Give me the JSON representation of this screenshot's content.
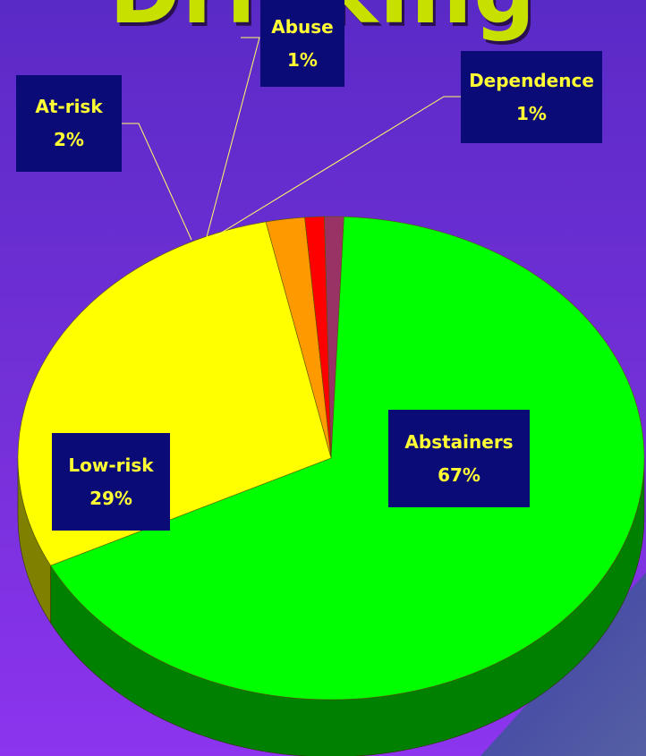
{
  "slide": {
    "title_fragment": "Drinking"
  },
  "chart_data": {
    "type": "pie",
    "style": "3d",
    "slices": [
      {
        "label": "Abstainers",
        "value": 67,
        "value_label": "67%",
        "color": "#00ff00",
        "side_color": "#008000"
      },
      {
        "label": "Low-risk",
        "value": 29,
        "value_label": "29%",
        "color": "#ffff00",
        "side_color": "#808000"
      },
      {
        "label": "At-risk",
        "value": 2,
        "value_label": "2%",
        "color": "#ff9900",
        "side_color": "#804c00"
      },
      {
        "label": "Abuse",
        "value": 1,
        "value_label": "1%",
        "color": "#ff0000",
        "side_color": "#800000"
      },
      {
        "label": "Dependence",
        "value": 1,
        "value_label": "1%",
        "color": "#993366",
        "side_color": "#4c1933"
      }
    ]
  }
}
